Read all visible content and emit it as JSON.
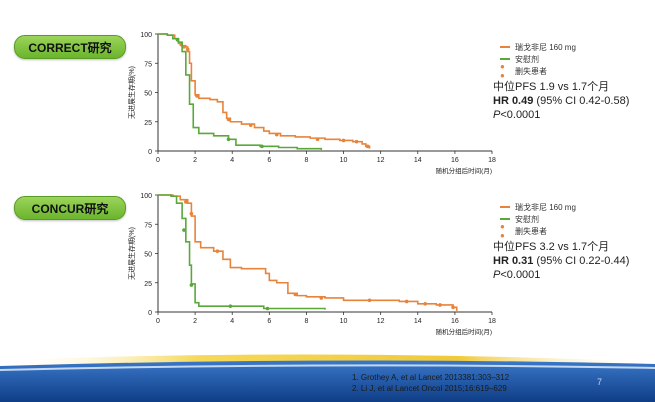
{
  "badges": {
    "correct": "CORRECT研究",
    "concur": "CONCUR研究"
  },
  "legend": {
    "regorafenib": "瑞戈非尼 160 mg",
    "placebo": "安慰剂",
    "censored": "删失患者"
  },
  "stats": [
    {
      "median": "中位PFS 1.9 vs 1.7个月",
      "hr_label": "HR 0.49",
      "ci": " (95% CI 0.42-0.58)",
      "p_label": "P",
      "p_value": "<0.0001"
    },
    {
      "median": "中位PFS 3.2 vs 1.7个月",
      "hr_label": "HR 0.31",
      "ci": " (95% CI 0.22-0.44)",
      "p_label": "P",
      "p_value": "<0.0001"
    }
  ],
  "references": [
    "1.   Grothey A, et al Lancet 2013381:303–312",
    "2.   Li J, et al Lancet Oncol 2015;16:619–629"
  ],
  "page_number": "7",
  "colors": {
    "regorafenib": "#e8833a",
    "placebo": "#5aa83a",
    "axis": "#333333",
    "footer_blue": "#1b4f9c"
  },
  "chart_data": [
    {
      "type": "line",
      "name": "CORRECT",
      "ylabel": "无进展生存期(%)",
      "xlabel": "随机分组后时间(月)",
      "xlim": [
        0,
        18
      ],
      "ylim": [
        0,
        100
      ],
      "xticks": [
        0,
        2,
        4,
        6,
        8,
        10,
        12,
        14,
        16,
        18
      ],
      "yticks": [
        0,
        25,
        50,
        75,
        100
      ],
      "series": [
        {
          "name": "瑞戈非尼 160 mg",
          "color": "#e8833a",
          "points": [
            [
              0,
              100
            ],
            [
              0.5,
              99
            ],
            [
              0.9,
              96
            ],
            [
              1.1,
              92
            ],
            [
              1.3,
              90
            ],
            [
              1.5,
              89
            ],
            [
              1.6,
              85
            ],
            [
              1.7,
              75
            ],
            [
              1.8,
              60
            ],
            [
              2.0,
              48
            ],
            [
              2.2,
              45
            ],
            [
              2.8,
              44
            ],
            [
              3.2,
              42
            ],
            [
              3.5,
              33
            ],
            [
              3.7,
              28
            ],
            [
              3.9,
              25
            ],
            [
              4.5,
              23
            ],
            [
              5.2,
              20
            ],
            [
              5.7,
              17
            ],
            [
              6.0,
              15
            ],
            [
              6.6,
              13
            ],
            [
              7.4,
              12
            ],
            [
              8.2,
              11
            ],
            [
              9.0,
              10
            ],
            [
              9.8,
              9
            ],
            [
              10.5,
              8
            ],
            [
              11.0,
              6
            ],
            [
              11.2,
              4
            ],
            [
              11.4,
              2
            ]
          ],
          "censored": [
            [
              1.25,
              91
            ],
            [
              1.4,
              89
            ],
            [
              1.6,
              87
            ],
            [
              2.1,
              47
            ],
            [
              3.8,
              27
            ],
            [
              5.0,
              22
            ],
            [
              6.4,
              14
            ],
            [
              8.6,
              10
            ],
            [
              10.0,
              9
            ],
            [
              10.7,
              8
            ],
            [
              11.3,
              4
            ]
          ]
        },
        {
          "name": "安慰剂",
          "color": "#5aa83a",
          "points": [
            [
              0,
              100
            ],
            [
              0.5,
              99
            ],
            [
              0.8,
              96
            ],
            [
              1.1,
              93
            ],
            [
              1.3,
              85
            ],
            [
              1.5,
              65
            ],
            [
              1.7,
              40
            ],
            [
              1.9,
              20
            ],
            [
              2.2,
              15
            ],
            [
              3.0,
              13
            ],
            [
              3.8,
              10
            ],
            [
              4.2,
              5
            ],
            [
              5.5,
              4
            ],
            [
              6.5,
              3
            ],
            [
              7.5,
              2
            ],
            [
              8.5,
              2
            ],
            [
              8.8,
              1
            ]
          ],
          "censored": [
            [
              1.05,
              95
            ],
            [
              3.8,
              10
            ],
            [
              5.6,
              4
            ]
          ]
        }
      ]
    },
    {
      "type": "line",
      "name": "CONCUR",
      "ylabel": "无进展生存期(%)",
      "xlabel": "随机分组后时间(月)",
      "xlim": [
        0,
        18
      ],
      "ylim": [
        0,
        100
      ],
      "xticks": [
        0,
        2,
        4,
        6,
        8,
        10,
        12,
        14,
        16,
        18
      ],
      "yticks": [
        0,
        25,
        50,
        75,
        100
      ],
      "series": [
        {
          "name": "瑞戈非尼 160 mg",
          "color": "#e8833a",
          "points": [
            [
              0,
              100
            ],
            [
              0.8,
              99
            ],
            [
              1.2,
              96
            ],
            [
              1.6,
              93
            ],
            [
              1.8,
              82
            ],
            [
              2.0,
              60
            ],
            [
              2.3,
              55
            ],
            [
              3.0,
              52
            ],
            [
              3.5,
              45
            ],
            [
              3.9,
              38
            ],
            [
              4.5,
              37
            ],
            [
              5.5,
              37
            ],
            [
              5.8,
              33
            ],
            [
              6.0,
              27
            ],
            [
              6.4,
              25
            ],
            [
              7.0,
              16
            ],
            [
              7.5,
              14
            ],
            [
              8.0,
              13
            ],
            [
              9.0,
              12
            ],
            [
              10.0,
              10
            ],
            [
              11.0,
              10
            ],
            [
              13.0,
              9
            ],
            [
              14.0,
              7
            ],
            [
              15.0,
              6
            ],
            [
              15.9,
              4
            ],
            [
              16.1,
              1
            ]
          ],
          "censored": [
            [
              1.5,
              94
            ],
            [
              1.8,
              84
            ],
            [
              3.2,
              52
            ],
            [
              7.4,
              15
            ],
            [
              8.8,
              12
            ],
            [
              11.4,
              10
            ],
            [
              13.4,
              9
            ],
            [
              14.4,
              7
            ],
            [
              15.2,
              6
            ],
            [
              15.9,
              4
            ]
          ]
        },
        {
          "name": "安慰剂",
          "color": "#5aa83a",
          "points": [
            [
              0,
              100
            ],
            [
              0.7,
              99
            ],
            [
              1.0,
              93
            ],
            [
              1.3,
              80
            ],
            [
              1.5,
              60
            ],
            [
              1.7,
              40
            ],
            [
              1.8,
              24
            ],
            [
              2.0,
              8
            ],
            [
              2.2,
              5
            ],
            [
              3.8,
              5
            ],
            [
              4.2,
              5
            ],
            [
              5.3,
              5
            ],
            [
              5.7,
              3
            ],
            [
              7.0,
              3
            ],
            [
              9.0,
              2
            ]
          ],
          "censored": [
            [
              1.4,
              70
            ],
            [
              1.8,
              23
            ],
            [
              3.9,
              5
            ],
            [
              5.9,
              3
            ]
          ]
        }
      ]
    }
  ]
}
